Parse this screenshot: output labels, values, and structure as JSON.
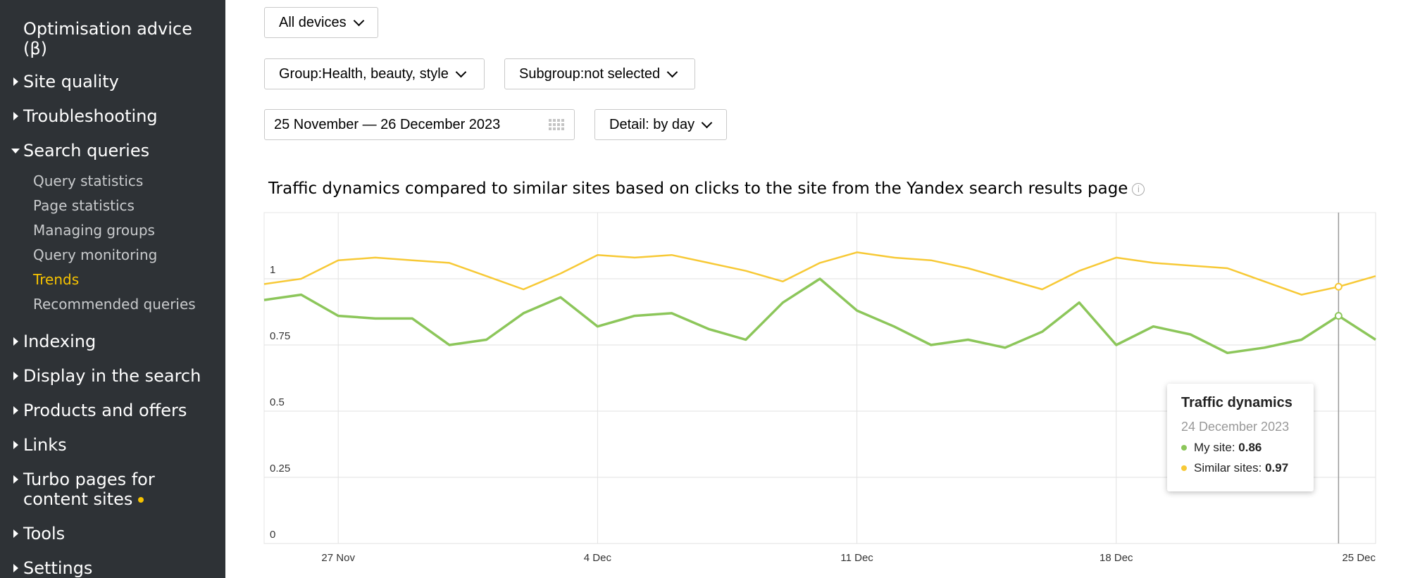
{
  "sidebar": {
    "top_item": "Optimisation advice (β)",
    "sections": [
      {
        "label": "Site quality",
        "expanded": false
      },
      {
        "label": "Troubleshooting",
        "expanded": false
      },
      {
        "label": "Search queries",
        "expanded": true
      },
      {
        "label": "Indexing",
        "expanded": false
      },
      {
        "label": "Display in the search",
        "expanded": false
      },
      {
        "label": "Products and offers",
        "expanded": false
      },
      {
        "label": "Links",
        "expanded": false
      },
      {
        "label": "Turbo pages for content sites",
        "expanded": false
      },
      {
        "label": "Tools",
        "expanded": false
      },
      {
        "label": "Settings",
        "expanded": false
      }
    ],
    "subitems": [
      "Query statistics",
      "Page statistics",
      "Managing groups",
      "Query monitoring",
      "Trends",
      "Recommended queries"
    ],
    "active_subitem": "Trends"
  },
  "filters": {
    "devices": "All devices",
    "group": "Group:Health, beauty, style",
    "subgroup": "Subgroup:not selected",
    "date_range": "25 November — 26 December 2023",
    "detail": "Detail: by day"
  },
  "chart_title": "Traffic dynamics compared to similar sites based on clicks to the site from the Yandex search results page",
  "tooltip": {
    "title": "Traffic dynamics",
    "date": "24 December 2023",
    "my_site_label": "My site:",
    "my_site_value": "0.86",
    "similar_label": "Similar sites:",
    "similar_value": "0.97"
  },
  "colors": {
    "my_site": "#8cc65a",
    "similar_sites": "#f7c936",
    "sidebar_bg": "#2e3236",
    "active": "#f7c300"
  },
  "chart_data": {
    "type": "line",
    "x": [
      "2023-11-25",
      "2023-11-26",
      "2023-11-27",
      "2023-11-28",
      "2023-11-29",
      "2023-11-30",
      "2023-12-01",
      "2023-12-02",
      "2023-12-03",
      "2023-12-04",
      "2023-12-05",
      "2023-12-06",
      "2023-12-07",
      "2023-12-08",
      "2023-12-09",
      "2023-12-10",
      "2023-12-11",
      "2023-12-12",
      "2023-12-13",
      "2023-12-14",
      "2023-12-15",
      "2023-12-16",
      "2023-12-17",
      "2023-12-18",
      "2023-12-19",
      "2023-12-20",
      "2023-12-21",
      "2023-12-22",
      "2023-12-23",
      "2023-12-24",
      "2023-12-25"
    ],
    "x_ticks": [
      "27 Nov",
      "4 Dec",
      "11 Dec",
      "18 Dec",
      "25 Dec"
    ],
    "y_ticks": [
      "0",
      "0.25",
      "0.5",
      "0.75",
      "1"
    ],
    "ylim": [
      0,
      1.25
    ],
    "series": [
      {
        "name": "My site",
        "values": [
          0.92,
          0.94,
          0.86,
          0.85,
          0.85,
          0.75,
          0.77,
          0.87,
          0.93,
          0.82,
          0.86,
          0.87,
          0.81,
          0.77,
          0.91,
          1.0,
          0.88,
          0.82,
          0.75,
          0.77,
          0.74,
          0.8,
          0.91,
          0.75,
          0.82,
          0.79,
          0.72,
          0.74,
          0.77,
          0.86,
          0.77
        ]
      },
      {
        "name": "Similar sites",
        "values": [
          0.98,
          1.0,
          1.07,
          1.08,
          1.07,
          1.06,
          1.01,
          0.96,
          1.02,
          1.09,
          1.08,
          1.09,
          1.06,
          1.03,
          0.99,
          1.06,
          1.1,
          1.08,
          1.07,
          1.04,
          1.0,
          0.96,
          1.03,
          1.08,
          1.06,
          1.05,
          1.04,
          0.99,
          0.94,
          0.97,
          1.01
        ]
      }
    ],
    "highlight": "2023-12-24"
  }
}
